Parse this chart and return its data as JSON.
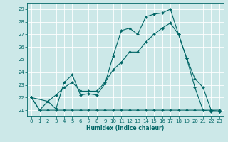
{
  "background_color": "#cce8e8",
  "grid_color": "#ffffff",
  "line_color": "#006666",
  "xlabel": "Humidex (Indice chaleur)",
  "xlim": [
    -0.5,
    23.5
  ],
  "ylim": [
    20.5,
    29.5
  ],
  "yticks": [
    21,
    22,
    23,
    24,
    25,
    26,
    27,
    28,
    29
  ],
  "xticks": [
    0,
    1,
    2,
    3,
    4,
    5,
    6,
    7,
    8,
    9,
    10,
    11,
    12,
    13,
    14,
    15,
    16,
    17,
    18,
    19,
    20,
    21,
    22,
    23
  ],
  "line1_x": [
    0,
    1,
    2,
    3,
    4,
    5,
    6,
    7,
    8,
    9,
    10,
    11,
    12,
    13,
    14,
    15,
    16,
    17,
    18,
    19,
    20,
    21,
    22,
    23
  ],
  "line1_y": [
    22,
    21,
    21.7,
    21.1,
    23.2,
    23.8,
    22.2,
    22.3,
    22.2,
    23.1,
    25.3,
    27.3,
    27.5,
    27.0,
    28.4,
    28.6,
    28.7,
    29.0,
    27.0,
    25.1,
    22.8,
    21.0,
    20.9,
    20.9
  ],
  "line2_x": [
    0,
    1,
    2,
    3,
    4,
    5,
    6,
    7,
    8,
    9,
    10,
    11,
    12,
    13,
    14,
    15,
    16,
    17,
    18,
    19,
    20,
    21,
    22,
    23
  ],
  "line2_y": [
    22,
    21,
    21,
    21,
    21,
    21,
    21,
    21,
    21,
    21,
    21,
    21,
    21,
    21,
    21,
    21,
    21,
    21,
    21,
    21,
    21,
    21,
    21,
    21
  ],
  "line3_x": [
    0,
    2,
    3,
    4,
    5,
    6,
    7,
    8,
    9,
    10,
    11,
    12,
    13,
    14,
    15,
    16,
    17,
    18,
    19,
    20,
    21,
    22,
    23
  ],
  "line3_y": [
    22,
    21.7,
    22.2,
    22.8,
    23.2,
    22.5,
    22.5,
    22.5,
    23.2,
    24.2,
    24.8,
    25.6,
    25.6,
    26.4,
    27.0,
    27.5,
    27.9,
    27.0,
    25.1,
    23.5,
    22.8,
    21.0,
    20.9
  ]
}
